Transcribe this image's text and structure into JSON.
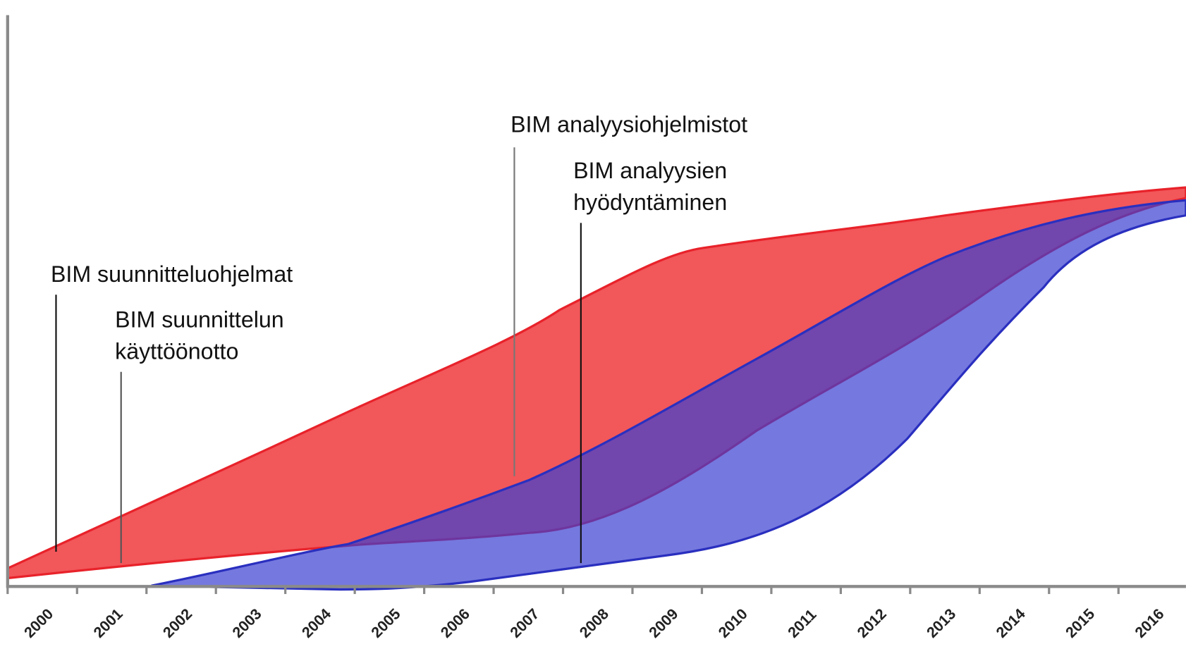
{
  "annotations": [
    {
      "lines": [
        "BIM suunnitteluohjelmat"
      ]
    },
    {
      "lines": [
        "BIM suunnittelun",
        "käyttöönotto"
      ]
    },
    {
      "lines": [
        "BIM analyysiohjelmistot"
      ]
    },
    {
      "lines": [
        "BIM analyysien",
        "hyödyntäminen"
      ]
    }
  ],
  "x_axis": {
    "labels": [
      "2000",
      "2001",
      "2002",
      "2003",
      "2004",
      "2005",
      "2006",
      "2007",
      "2008",
      "2009",
      "2010",
      "2011",
      "2012",
      "2013",
      "2014",
      "2015",
      "2016"
    ]
  }
}
